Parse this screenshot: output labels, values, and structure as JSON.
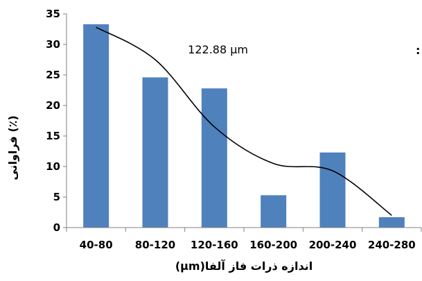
{
  "chart_data": {
    "type": "bar",
    "categories": [
      "40-80",
      "80-120",
      "120-160",
      "160-200",
      "200-240",
      "240-280"
    ],
    "values": [
      33.3,
      24.6,
      22.8,
      5.3,
      12.3,
      1.7
    ],
    "trendline": {
      "type": "smooth",
      "values": [
        32.8,
        27.5,
        16.5,
        10.5,
        9.3,
        2.0
      ]
    },
    "xlabel": "(µm)اندازه ذرات فاز آلفا",
    "ylabel": "فراوانی (٪)",
    "ylim": [
      0,
      35
    ],
    "yticks": [
      0,
      5,
      10,
      15,
      20,
      25,
      30,
      35
    ],
    "annotation": {
      "label": "میانگین اندازه ذرات :",
      "value": "122.88 µm"
    },
    "grid": false,
    "legend": "none",
    "colors": {
      "bar": "#4F81BD",
      "trendline": "#000000",
      "axis": "#808080"
    }
  }
}
